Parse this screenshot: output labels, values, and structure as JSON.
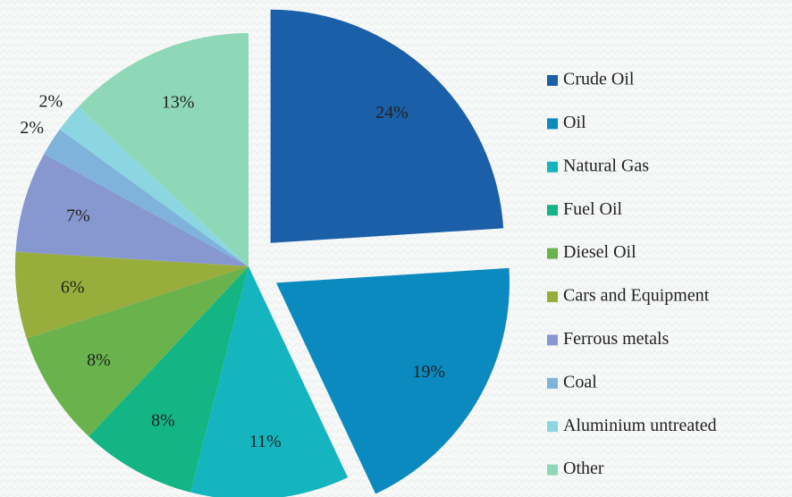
{
  "chart_data": {
    "type": "pie",
    "categories": [
      "Crude Oil",
      "Oil",
      "Natural Gas",
      "Fuel Oil",
      "Diesel Oil",
      "Cars and Equipment",
      "Ferrous metals",
      "Coal",
      "Aluminium untreated",
      "Other"
    ],
    "values": [
      24,
      19,
      11,
      8,
      8,
      6,
      7,
      2,
      2,
      13
    ],
    "value_labels": [
      "24%",
      "19%",
      "11%",
      "8%",
      "8%",
      "6%",
      "7%",
      "2%",
      "2%",
      "13%"
    ],
    "colors": [
      "#1a5fa8",
      "#0b8ac0",
      "#14b5bf",
      "#13b585",
      "#6ab24c",
      "#98ad3c",
      "#8798d0",
      "#7fb3dc",
      "#8bd6e0",
      "#8ed8b8"
    ],
    "explode": [
      0,
      1
    ],
    "legend": "right"
  }
}
